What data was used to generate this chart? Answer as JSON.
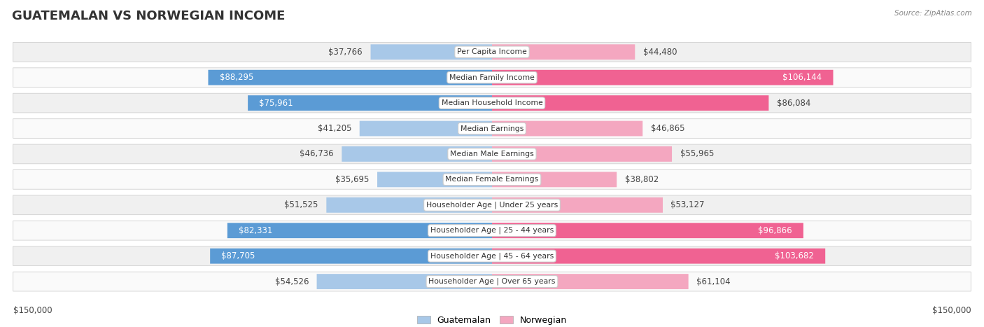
{
  "title": "GUATEMALAN VS NORWEGIAN INCOME",
  "source": "Source: ZipAtlas.com",
  "categories": [
    "Per Capita Income",
    "Median Family Income",
    "Median Household Income",
    "Median Earnings",
    "Median Male Earnings",
    "Median Female Earnings",
    "Householder Age | Under 25 years",
    "Householder Age | 25 - 44 years",
    "Householder Age | 45 - 64 years",
    "Householder Age | Over 65 years"
  ],
  "guatemalan_values": [
    37766,
    88295,
    75961,
    41205,
    46736,
    35695,
    51525,
    82331,
    87705,
    54526
  ],
  "norwegian_values": [
    44480,
    106144,
    86084,
    46865,
    55965,
    38802,
    53127,
    96866,
    103682,
    61104
  ],
  "guatemalan_labels": [
    "$37,766",
    "$88,295",
    "$75,961",
    "$41,205",
    "$46,736",
    "$35,695",
    "$51,525",
    "$82,331",
    "$87,705",
    "$54,526"
  ],
  "norwegian_labels": [
    "$44,480",
    "$106,144",
    "$86,084",
    "$46,865",
    "$55,965",
    "$38,802",
    "$53,127",
    "$96,866",
    "$103,682",
    "$61,104"
  ],
  "guat_label_inside": [
    false,
    true,
    true,
    false,
    false,
    false,
    false,
    true,
    true,
    false
  ],
  "norw_label_inside": [
    false,
    true,
    false,
    false,
    false,
    false,
    false,
    true,
    true,
    false
  ],
  "guat_dark": [
    false,
    true,
    true,
    false,
    false,
    false,
    false,
    true,
    true,
    false
  ],
  "norw_dark": [
    false,
    true,
    true,
    false,
    false,
    false,
    false,
    true,
    true,
    false
  ],
  "color_guat_light": "#a8c8e8",
  "color_guat_dark": "#5b9bd5",
  "color_norw_light": "#f4a7c0",
  "color_norw_dark": "#f06292",
  "row_bg_odd": "#f0f0f0",
  "row_bg_even": "#fafafa",
  "max_value": 150000,
  "xlabel_left": "$150,000",
  "xlabel_right": "$150,000",
  "legend_guatemalan": "Guatemalan",
  "legend_norwegian": "Norwegian",
  "title_fontsize": 13,
  "label_fontsize": 8.5,
  "category_fontsize": 7.8,
  "axis_label_fontsize": 8.5
}
